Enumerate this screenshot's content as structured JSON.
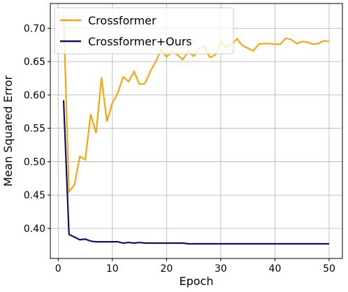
{
  "chart_data": {
    "type": "line",
    "xlabel": "Epoch",
    "ylabel": "Mean Squared Error",
    "x": [
      1,
      2,
      3,
      4,
      5,
      6,
      7,
      8,
      9,
      10,
      11,
      12,
      13,
      14,
      15,
      16,
      17,
      18,
      19,
      20,
      21,
      22,
      23,
      24,
      25,
      26,
      27,
      28,
      29,
      30,
      31,
      32,
      33,
      34,
      35,
      36,
      37,
      38,
      39,
      40,
      41,
      42,
      43,
      44,
      45,
      46,
      47,
      48,
      49,
      50
    ],
    "series": [
      {
        "name": "Crossformer",
        "color": "#f5a70f",
        "values": [
          0.72,
          0.455,
          0.465,
          0.508,
          0.503,
          0.571,
          0.543,
          0.626,
          0.56,
          0.588,
          0.603,
          0.627,
          0.62,
          0.635,
          0.616,
          0.617,
          0.635,
          0.65,
          0.667,
          0.657,
          0.665,
          0.66,
          0.653,
          0.665,
          0.658,
          0.67,
          0.672,
          0.656,
          0.66,
          0.68,
          0.672,
          0.676,
          0.684,
          0.674,
          0.67,
          0.666,
          0.676,
          0.677,
          0.677,
          0.676,
          0.676,
          0.685,
          0.683,
          0.677,
          0.68,
          0.679,
          0.676,
          0.677,
          0.681,
          0.68
        ]
      },
      {
        "name": "Crossformer+Ours",
        "color": "#10106e",
        "values": [
          0.592,
          0.391,
          0.387,
          0.383,
          0.384,
          0.381,
          0.38,
          0.38,
          0.38,
          0.38,
          0.38,
          0.378,
          0.379,
          0.378,
          0.379,
          0.378,
          0.378,
          0.378,
          0.378,
          0.378,
          0.378,
          0.378,
          0.378,
          0.377,
          0.377,
          0.377,
          0.377,
          0.377,
          0.377,
          0.377,
          0.377,
          0.377,
          0.377,
          0.377,
          0.377,
          0.377,
          0.377,
          0.377,
          0.377,
          0.377,
          0.377,
          0.377,
          0.377,
          0.377,
          0.377,
          0.377,
          0.377,
          0.377,
          0.377,
          0.377
        ]
      }
    ],
    "xlim": [
      -1.45,
      52.45
    ],
    "xticks": [
      0,
      10,
      20,
      30,
      40,
      50
    ],
    "ylim": [
      0.355,
      0.737
    ],
    "yticks": [
      0.4,
      0.45,
      0.5,
      0.55,
      0.6,
      0.65,
      0.7
    ],
    "grid": true,
    "legend": "upper-left"
  }
}
